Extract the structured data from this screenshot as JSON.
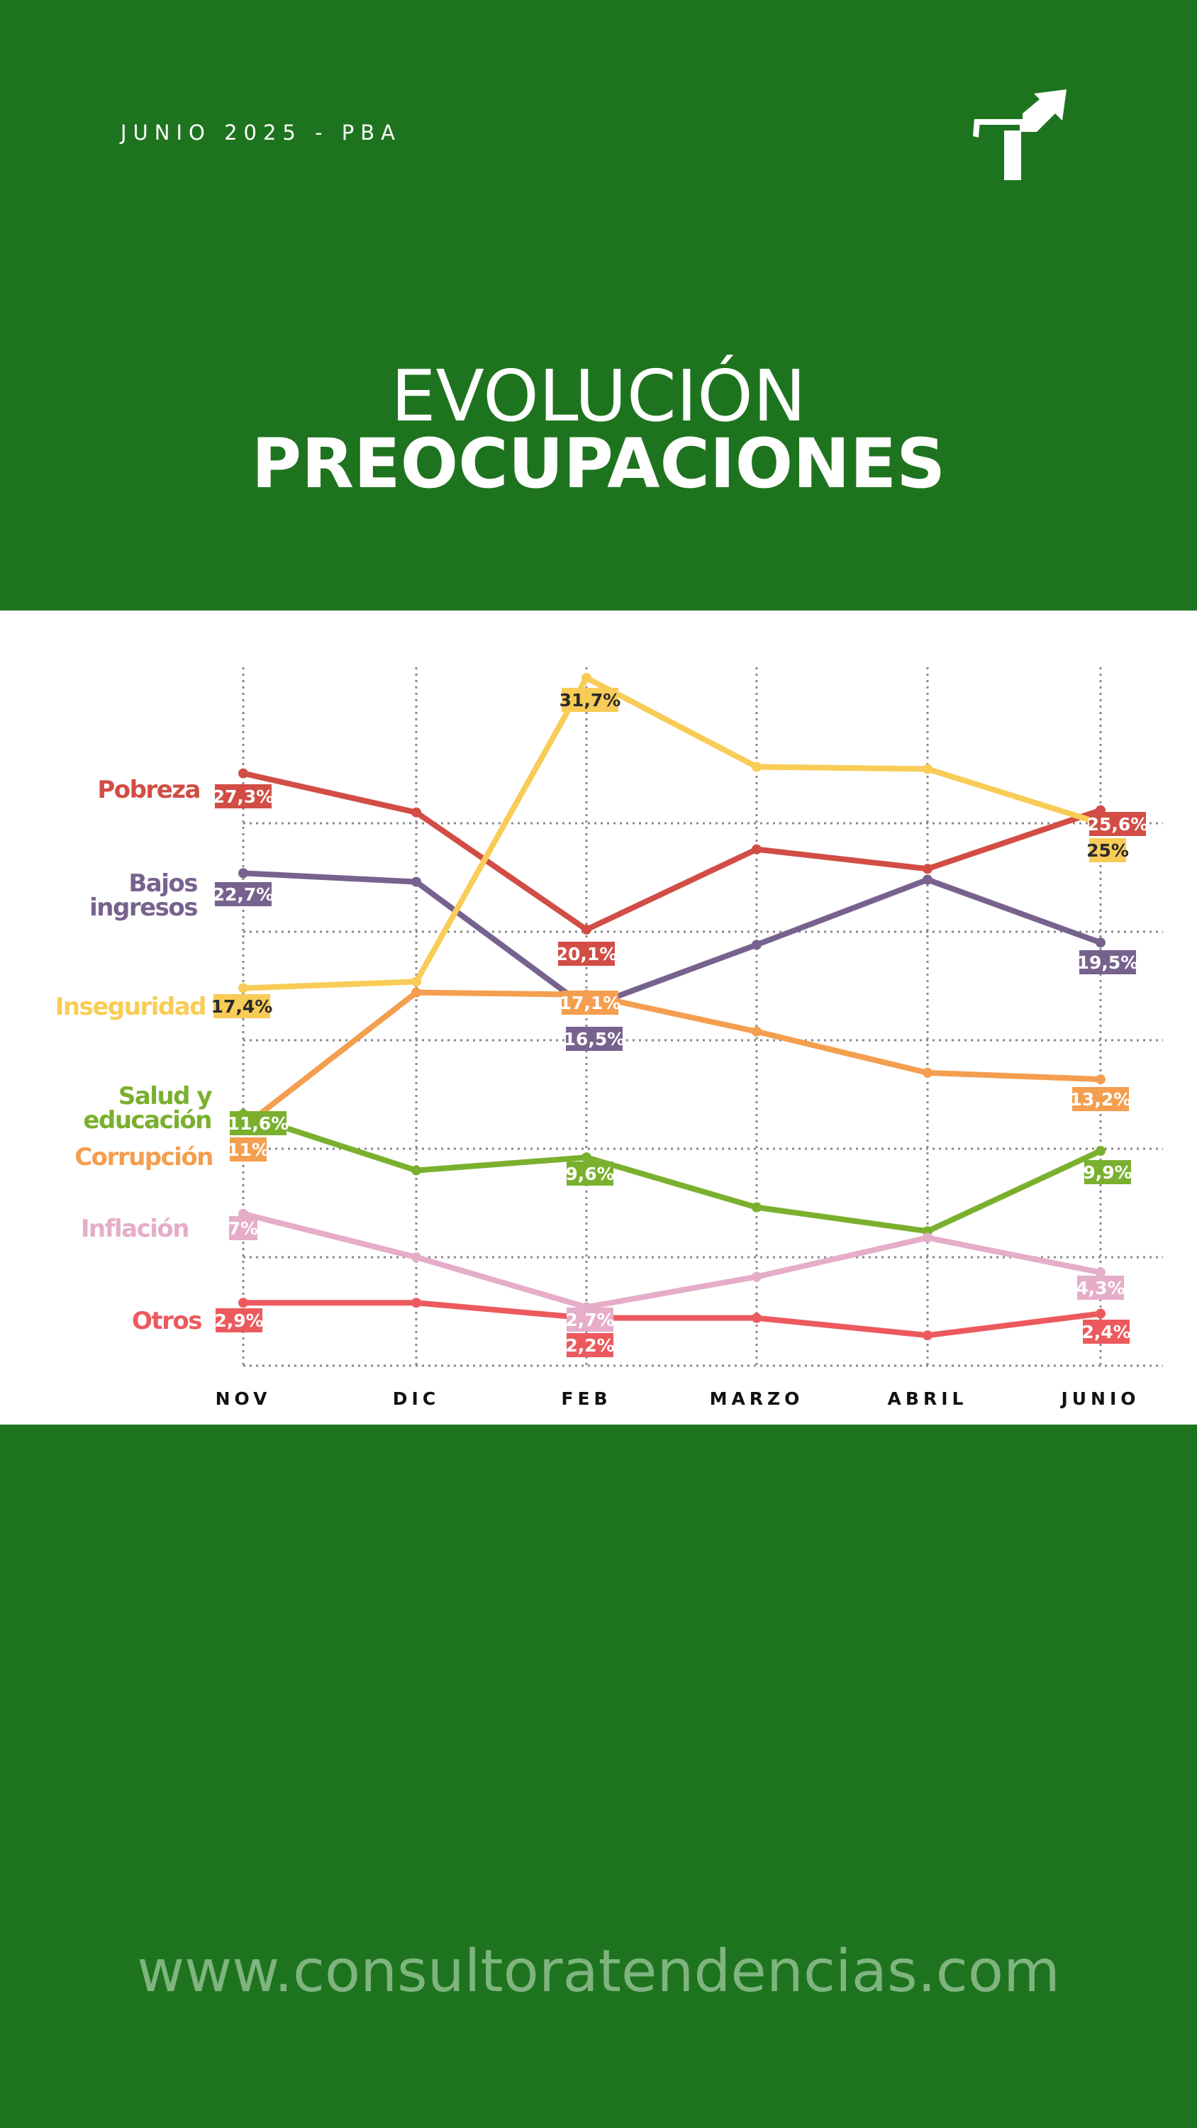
{
  "header": {
    "date_label": "JUNIO 2025 - PBA",
    "title_line1": "EVOLUCIÓN",
    "title_line2": "PREOCUPACIONES",
    "logo_icon": "arrow-signpost-icon"
  },
  "footer": {
    "url": "www.consultoratendencias.com"
  },
  "colors": {
    "background": "#1e741e",
    "panel": "#ffffff",
    "url_text": "#7fb47f"
  },
  "chart_data": {
    "type": "line",
    "title": "",
    "xlabel": "",
    "ylabel": "",
    "categories": [
      "NOV",
      "DIC",
      "FEB",
      "MARZO",
      "ABRIL",
      "JUNIO"
    ],
    "ylim": [
      0,
      35
    ],
    "grid": true,
    "legend": "left",
    "series": [
      {
        "key": "pobreza",
        "name_lines": [
          "Pobreza"
        ],
        "color": "#d14d45",
        "values": [
          27.3,
          25.5,
          20.1,
          23.8,
          22.9,
          25.6
        ],
        "labels": [
          "27,3%",
          "",
          "20,1%",
          "",
          "",
          "25,6%"
        ]
      },
      {
        "key": "bajos",
        "name_lines": [
          "Bajos",
          "ingresos"
        ],
        "color": "#77628e",
        "values": [
          22.7,
          22.3,
          16.5,
          19.4,
          22.4,
          19.5
        ],
        "labels": [
          "22,7%",
          "",
          "16,5%",
          "",
          "",
          "19,5%"
        ]
      },
      {
        "key": "inseguridad",
        "name_lines": [
          "Inseguridad"
        ],
        "color": "#f8cc56",
        "values": [
          17.4,
          17.7,
          31.7,
          27.6,
          27.5,
          25.0
        ],
        "labels": [
          "17,4%",
          "",
          "31,7%",
          "",
          "",
          "25%"
        ]
      },
      {
        "key": "corrupcion",
        "name_lines": [
          "Corrupción"
        ],
        "color": "#f49e4f",
        "values": [
          11.0,
          17.2,
          17.1,
          15.4,
          13.5,
          13.2
        ],
        "labels": [
          "11%",
          "",
          "17,1%",
          "",
          "",
          "13,2%"
        ]
      },
      {
        "key": "salud",
        "name_lines": [
          "Salud y",
          "educación"
        ],
        "color": "#7ab02e",
        "values": [
          11.6,
          9.0,
          9.6,
          7.3,
          6.2,
          9.9
        ],
        "labels": [
          "11,6%",
          "",
          "9,6%",
          "",
          "",
          "9,9%"
        ]
      },
      {
        "key": "inflacion",
        "name_lines": [
          "Inflación"
        ],
        "color": "#e5adc8",
        "values": [
          7.0,
          5.0,
          2.7,
          4.1,
          5.9,
          4.3
        ],
        "labels": [
          "7%",
          "",
          "2,7%",
          "",
          "",
          "4,3%"
        ]
      },
      {
        "key": "otros",
        "name_lines": [
          "Otros"
        ],
        "color": "#ec5a5e",
        "values": [
          2.9,
          2.9,
          2.2,
          2.2,
          1.4,
          2.4
        ],
        "labels": [
          "2,9%",
          "",
          "2,2%",
          "",
          "",
          "2,4%"
        ]
      }
    ]
  }
}
